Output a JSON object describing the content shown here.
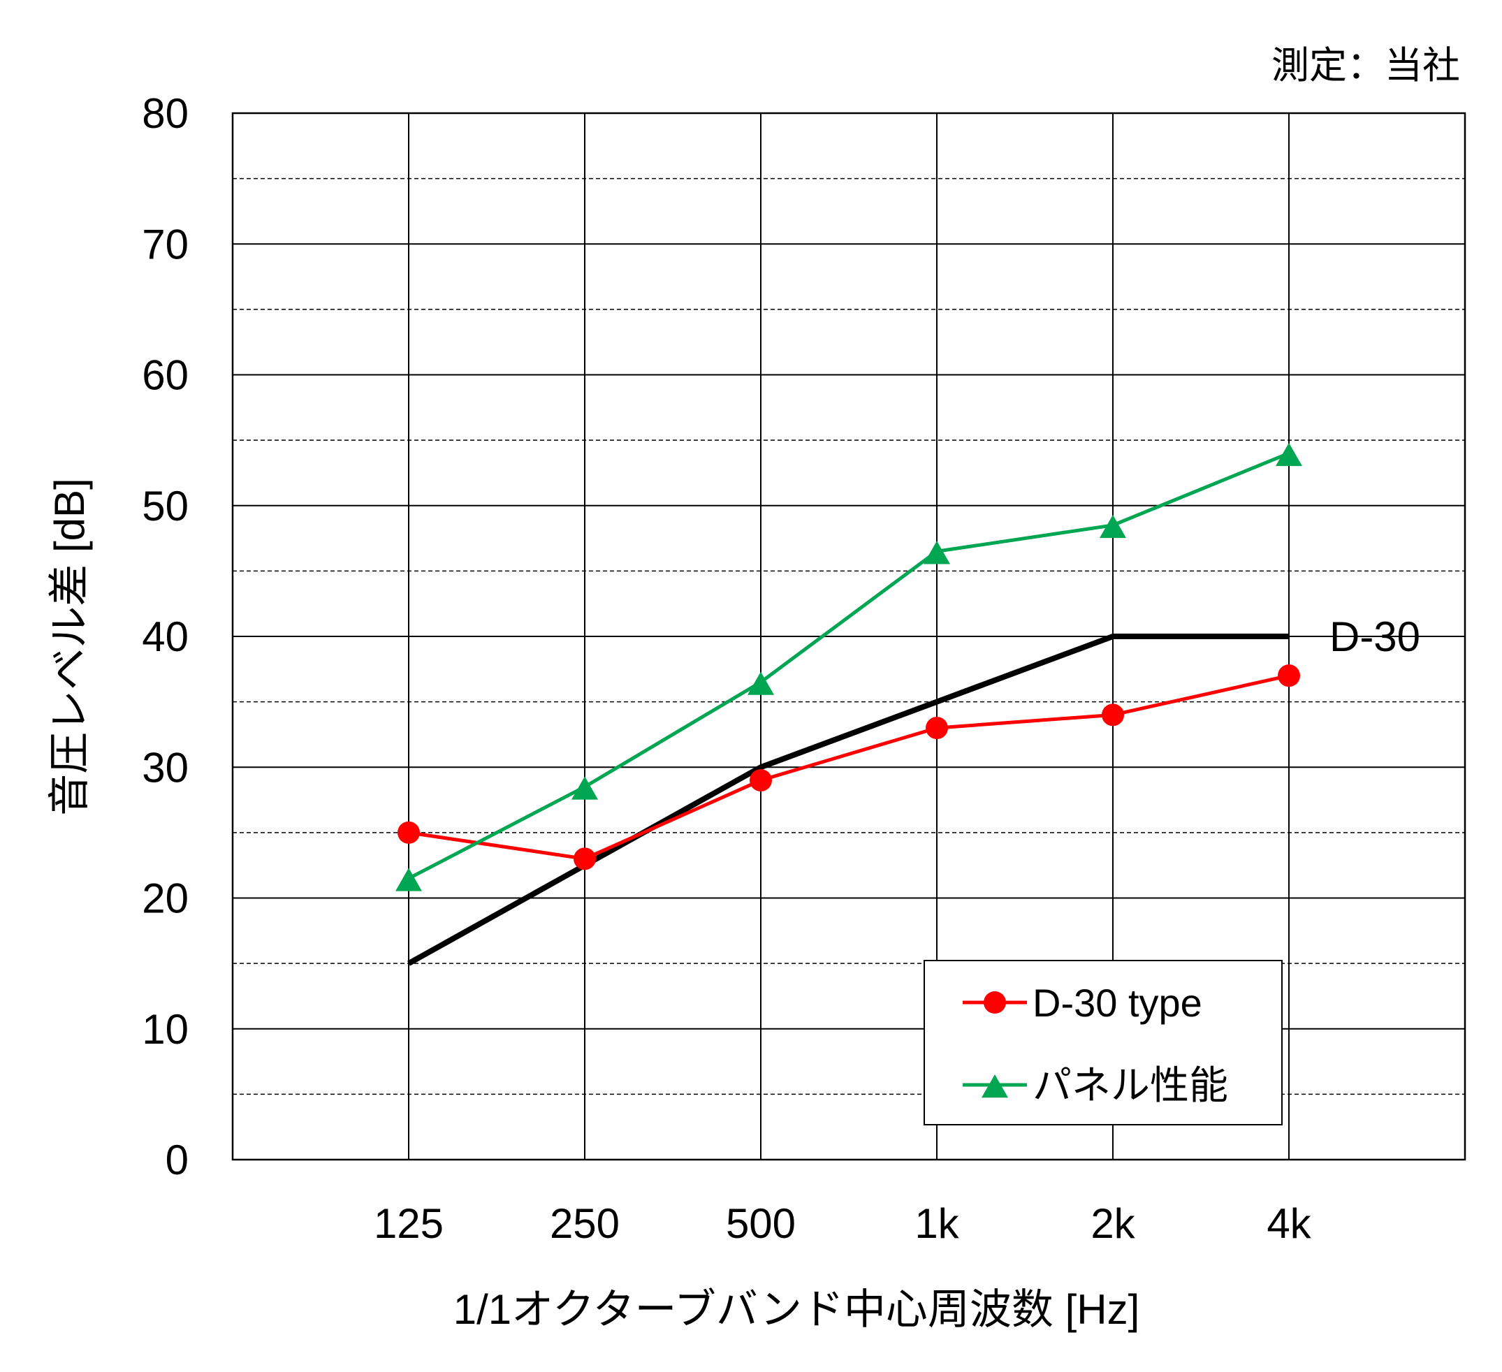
{
  "chart_data": {
    "type": "line",
    "categories": [
      "125",
      "250",
      "500",
      "1k",
      "2k",
      "4k"
    ],
    "xlabel": "1/1オクターブバンド中心周波数 [Hz]",
    "ylabel": "音圧レベル差 [dB]",
    "ylim": [
      0,
      80
    ],
    "yticks": [
      "0",
      "10",
      "20",
      "30",
      "40",
      "50",
      "60",
      "70",
      "80"
    ],
    "grid": "major solid every 10, minor dashed every 5",
    "note": "測定：当社",
    "reference": {
      "label": "D-30",
      "values": [
        15,
        22.5,
        30,
        35,
        40,
        40
      ],
      "color": "#000000"
    },
    "series": [
      {
        "name": "D-30 type",
        "values": [
          25,
          23,
          29,
          33,
          34,
          37
        ],
        "color": "#ff0000",
        "marker": "circle"
      },
      {
        "name": "パネル性能",
        "values": [
          21.5,
          28.5,
          36.5,
          46.5,
          48.5,
          54
        ],
        "color": "#00a651",
        "marker": "triangle"
      }
    ],
    "legend_position": "bottom-right"
  }
}
